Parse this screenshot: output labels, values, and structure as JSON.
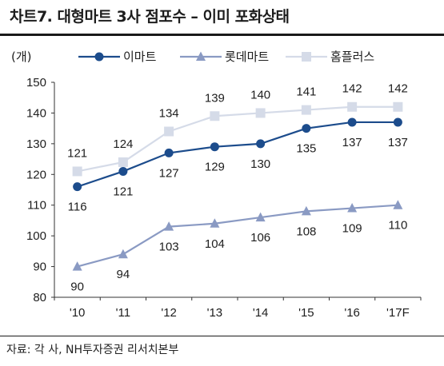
{
  "title": "차트7. 대형마트 3사 점포수 – 이미 포화상태",
  "source": "자료: 각 사, NH투자증권 리서치본부",
  "chart_data": {
    "type": "line",
    "unit": "(개)",
    "categories": [
      "'10",
      "'11",
      "'12",
      "'13",
      "'14",
      "'15",
      "'16",
      "'17F"
    ],
    "ylim": [
      80,
      150
    ],
    "yticks": [
      80,
      90,
      100,
      110,
      120,
      130,
      140,
      150
    ],
    "grid": false,
    "legend_position": "top",
    "series": [
      {
        "name": "이마트",
        "values": [
          116,
          121,
          127,
          129,
          130,
          135,
          137,
          137
        ],
        "color": "#1c4c8c",
        "marker": "circle"
      },
      {
        "name": "롯데마트",
        "values": [
          90,
          94,
          103,
          104,
          106,
          108,
          109,
          110
        ],
        "color": "#8a9ac3",
        "marker": "triangle"
      },
      {
        "name": "홈플러스",
        "values": [
          121,
          124,
          134,
          139,
          140,
          141,
          142,
          142
        ],
        "color": "#d5dbe8",
        "marker": "square"
      }
    ]
  }
}
